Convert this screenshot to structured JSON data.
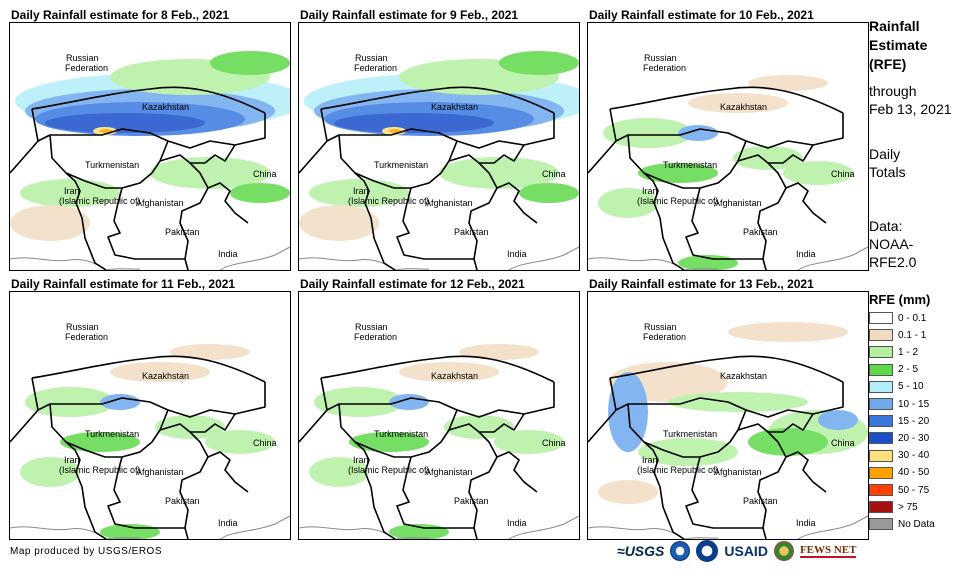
{
  "panels": [
    {
      "title": "Daily Rainfall estimate for 8 Feb., 2021",
      "intensity": "heavy"
    },
    {
      "title": "Daily Rainfall estimate for 9 Feb., 2021",
      "intensity": "heavy"
    },
    {
      "title": "Daily Rainfall estimate for 10 Feb., 2021",
      "intensity": "light"
    },
    {
      "title": "Daily Rainfall estimate for 11 Feb., 2021",
      "intensity": "light"
    },
    {
      "title": "Daily Rainfall estimate for 12 Feb., 2021",
      "intensity": "light"
    },
    {
      "title": "Daily Rainfall estimate for 13 Feb., 2021",
      "intensity": "moderate"
    }
  ],
  "map_labels": {
    "russia_line1": "Russian",
    "russia_line2": "Federation",
    "kazakhstan": "Kazakhstan",
    "turkmenistan": "Turkmenistan",
    "china": "China",
    "iran_line1": "Iran",
    "iran_line2": "(Islamic Republic of)",
    "afghanistan": "Afghanistan",
    "pakistan": "Pakistan",
    "india": "India"
  },
  "side": {
    "heading_line1": "Rainfall",
    "heading_line2": "Estimate",
    "heading_line3": "(RFE)",
    "through_line1": "through",
    "through_line2": "Feb 13, 2021",
    "totals_line1": "Daily",
    "totals_line2": "Totals",
    "data_line1": "Data:",
    "data_line2": "NOAA-",
    "data_line3": "RFE2.0"
  },
  "legend": {
    "title": "RFE (mm)",
    "items": [
      {
        "label": "0 - 0.1",
        "color": "#ffffff"
      },
      {
        "label": "0.1 - 1",
        "color": "#f1dcc2"
      },
      {
        "label": "1 - 2",
        "color": "#b4f0a0"
      },
      {
        "label": "2 - 5",
        "color": "#5fd94a"
      },
      {
        "label": "5 - 10",
        "color": "#b3eefa"
      },
      {
        "label": "10 - 15",
        "color": "#6eaaee"
      },
      {
        "label": "15 - 20",
        "color": "#3a78e0"
      },
      {
        "label": "20 - 30",
        "color": "#1b4fc9"
      },
      {
        "label": "30 - 40",
        "color": "#ffe07a"
      },
      {
        "label": "40 - 50",
        "color": "#ffa200"
      },
      {
        "label": "50 - 75",
        "color": "#ff4000"
      },
      {
        "label": "> 75",
        "color": "#a51010"
      },
      {
        "label": "No Data",
        "color": "#9a9a9a"
      }
    ]
  },
  "credit": "Map produced by USGS/EROS",
  "logos": {
    "usgs": "USGS",
    "usaid": "USAID",
    "fews": "FEWS NET"
  }
}
